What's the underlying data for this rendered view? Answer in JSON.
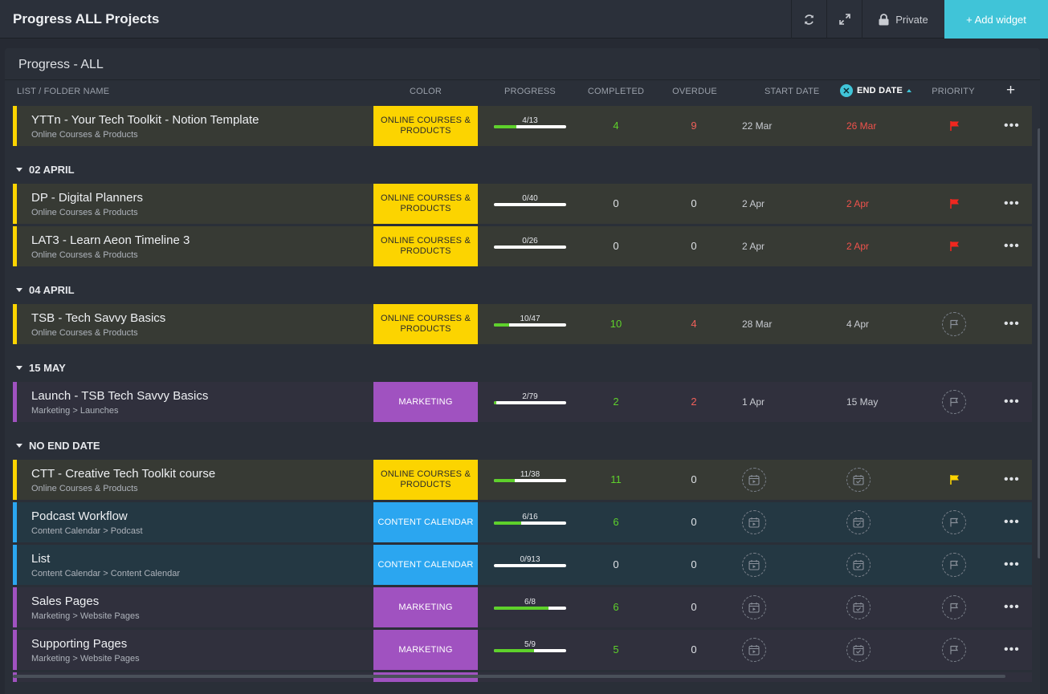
{
  "topbar": {
    "title": "Progress ALL Projects",
    "private_label": "Private",
    "add_widget_label": "+ Add widget"
  },
  "panel": {
    "title": "Progress - ALL",
    "columns": {
      "name": "LIST / FOLDER NAME",
      "color": "COLOR",
      "progress": "PROGRESS",
      "completed": "COMPLETED",
      "overdue": "OVERDUE",
      "start_date": "START DATE",
      "end_date": "END DATE",
      "priority": "PRIORITY"
    }
  },
  "groups": {
    "g1": "02 APRIL",
    "g2": "04 APRIL",
    "g3": "15 MAY",
    "g4": "NO END DATE"
  },
  "colors": {
    "online_courses": "#fcd400",
    "marketing": "#a052c0",
    "content_calendar": "#2ba6f0",
    "row_olive": "#373a34",
    "row_purple": "#30303d",
    "row_blue": "#243843",
    "accent": "#40c4d8"
  },
  "rows": [
    {
      "name": "YTTn - Your Tech Toolkit - Notion Template",
      "sub": "Online Courses & Products",
      "tag": "ONLINE COURSES & PRODUCTS",
      "progress_text": "4/13",
      "progress": 0.31,
      "completed": "4",
      "overdue": "9",
      "start": "22 Mar",
      "end": "26 Mar",
      "priority": "red-flag"
    },
    {
      "name": "DP - Digital Planners",
      "sub": "Online Courses & Products",
      "tag": "ONLINE COURSES & PRODUCTS",
      "progress_text": "0/40",
      "progress": 0.0,
      "completed": "0",
      "overdue": "0",
      "start": "2 Apr",
      "end": "2 Apr",
      "priority": "red-flag"
    },
    {
      "name": "LAT3 - Learn Aeon Timeline 3",
      "sub": "Online Courses & Products",
      "tag": "ONLINE COURSES & PRODUCTS",
      "progress_text": "0/26",
      "progress": 0.0,
      "completed": "0",
      "overdue": "0",
      "start": "2 Apr",
      "end": "2 Apr",
      "priority": "red-flag"
    },
    {
      "name": "TSB - Tech Savvy Basics",
      "sub": "Online Courses & Products",
      "tag": "ONLINE COURSES & PRODUCTS",
      "progress_text": "10/47",
      "progress": 0.21,
      "completed": "10",
      "overdue": "4",
      "start": "28 Mar",
      "end": "4 Apr",
      "priority": "empty-flag"
    },
    {
      "name": "Launch - TSB Tech Savvy Basics",
      "sub": "Marketing > Launches",
      "tag": "MARKETING",
      "progress_text": "2/79",
      "progress": 0.03,
      "completed": "2",
      "overdue": "2",
      "start": "1 Apr",
      "end": "15 May",
      "priority": "empty-flag"
    },
    {
      "name": "CTT - Creative Tech Toolkit course",
      "sub": "Online Courses & Products",
      "tag": "ONLINE COURSES & PRODUCTS",
      "progress_text": "11/38",
      "progress": 0.29,
      "completed": "11",
      "overdue": "0",
      "priority": "yellow-flag"
    },
    {
      "name": "Podcast Workflow",
      "sub": "Content Calendar > Podcast",
      "tag": "CONTENT CALENDAR",
      "progress_text": "6/16",
      "progress": 0.375,
      "completed": "6",
      "overdue": "0",
      "priority": "empty-flag"
    },
    {
      "name": "List",
      "sub": "Content Calendar > Content Calendar",
      "tag": "CONTENT CALENDAR",
      "progress_text": "0/913",
      "progress": 0.0,
      "completed": "0",
      "overdue": "0",
      "priority": "empty-flag"
    },
    {
      "name": "Sales Pages",
      "sub": "Marketing > Website Pages",
      "tag": "MARKETING",
      "progress_text": "6/8",
      "progress": 0.75,
      "completed": "6",
      "overdue": "0",
      "priority": "empty-flag"
    },
    {
      "name": "Supporting Pages",
      "sub": "Marketing > Website Pages",
      "tag": "MARKETING",
      "progress_text": "5/9",
      "progress": 0.56,
      "completed": "5",
      "overdue": "0",
      "priority": "empty-flag"
    }
  ]
}
